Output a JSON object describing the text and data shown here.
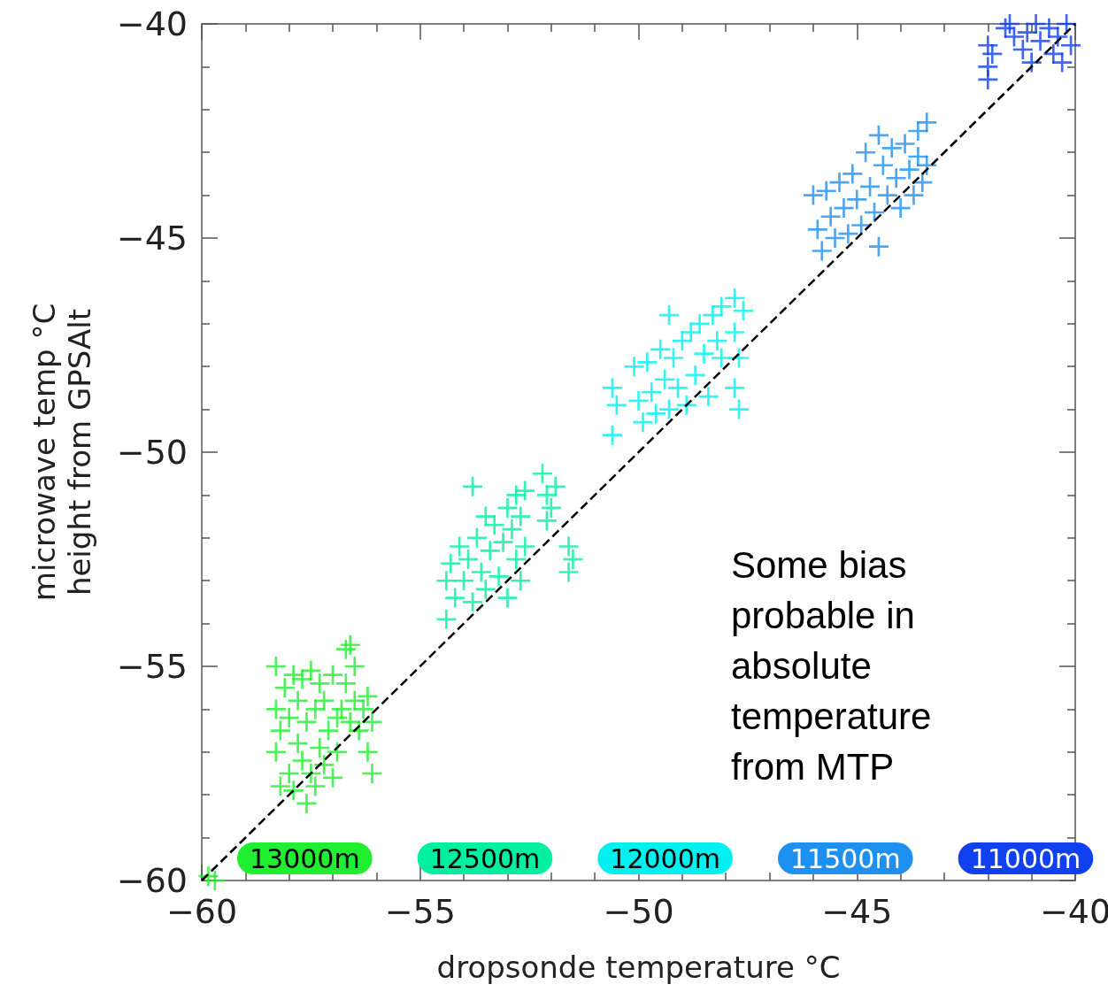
{
  "chart_data": {
    "type": "scatter",
    "xlabel": "dropsonde temperature °C",
    "ylabel": "microwave temp °C\nheight from GPSAlt",
    "xlim": [
      -60,
      -40
    ],
    "ylim": [
      -60,
      -40
    ],
    "xticks": [
      -60,
      {
        "value": -59,
        "label": null
      },
      {
        "value": -58,
        "label": null
      },
      {
        "value": -57,
        "label": null
      },
      {
        "value": -56,
        "label": null
      },
      -55,
      {
        "value": -54,
        "label": null
      },
      {
        "value": -53,
        "label": null
      },
      {
        "value": -52,
        "label": null
      },
      {
        "value": -51,
        "label": null
      },
      -50,
      {
        "value": -49,
        "label": null
      },
      {
        "value": -48,
        "label": null
      },
      {
        "value": -47,
        "label": null
      },
      {
        "value": -46,
        "label": null
      },
      -45,
      {
        "value": -44,
        "label": null
      },
      {
        "value": -43,
        "label": null
      },
      {
        "value": -42,
        "label": null
      },
      {
        "value": -41,
        "label": null
      },
      -40
    ],
    "yticks": [
      -60,
      {
        "value": -59,
        "label": null
      },
      {
        "value": -58,
        "label": null
      },
      {
        "value": -57,
        "label": null
      },
      {
        "value": -56,
        "label": null
      },
      -55,
      {
        "value": -54,
        "label": null
      },
      {
        "value": -53,
        "label": null
      },
      {
        "value": -52,
        "label": null
      },
      {
        "value": -51,
        "label": null
      },
      -50,
      {
        "value": -49,
        "label": null
      },
      {
        "value": -48,
        "label": null
      },
      {
        "value": -47,
        "label": null
      },
      {
        "value": -46,
        "label": null
      },
      -45,
      {
        "value": -44,
        "label": null
      },
      {
        "value": -43,
        "label": null
      },
      {
        "value": -42,
        "label": null
      },
      {
        "value": -41,
        "label": null
      },
      -40
    ],
    "grid": false,
    "legend": "bottom",
    "marker": "cross",
    "annotations": [
      "Some bias\nprobable in\nabsolute\ntemperature\nfrom MTP"
    ],
    "series": [
      {
        "name": "13000m",
        "color": "#20ee30",
        "x": [
          -58.3,
          -58.3,
          -58.3,
          -58.2,
          -58.2,
          -58.1,
          -58.0,
          -58.0,
          -57.9,
          -57.9,
          -57.8,
          -57.8,
          -57.7,
          -57.7,
          -57.6,
          -57.6,
          -57.5,
          -57.5,
          -57.4,
          -57.4,
          -57.3,
          -57.3,
          -57.2,
          -57.2,
          -57.1,
          -57.0,
          -57.0,
          -56.9,
          -56.9,
          -56.8,
          -56.7,
          -56.7,
          -56.6,
          -56.6,
          -56.5,
          -56.5,
          -56.4,
          -56.3,
          -56.2,
          -56.2,
          -56.1,
          -56.1,
          -59.85,
          -59.7
        ],
        "values": [
          -55.0,
          -56.0,
          -57.0,
          -57.8,
          -56.5,
          -55.5,
          -57.5,
          -56.2,
          -55.2,
          -57.9,
          -56.8,
          -55.8,
          -55.3,
          -57.2,
          -56.3,
          -58.2,
          -55.1,
          -57.5,
          -56.0,
          -57.8,
          -55.4,
          -56.9,
          -57.3,
          -55.8,
          -56.5,
          -57.6,
          -55.2,
          -56.2,
          -57.0,
          -56.0,
          -54.6,
          -55.4,
          -54.5,
          -56.3,
          -55.0,
          -55.8,
          -56.5,
          -56.0,
          -57.0,
          -55.7,
          -57.5,
          -56.3,
          -59.9,
          -60.0
        ]
      },
      {
        "name": "12500m",
        "color": "#00f0a0",
        "x": [
          -54.4,
          -54.4,
          -54.3,
          -54.2,
          -54.1,
          -54.0,
          -53.9,
          -53.8,
          -53.8,
          -53.7,
          -53.6,
          -53.5,
          -53.5,
          -53.4,
          -53.3,
          -53.2,
          -53.1,
          -53.0,
          -53.0,
          -52.9,
          -52.8,
          -52.8,
          -52.7,
          -52.7,
          -52.6,
          -52.6,
          -52.2,
          -52.1,
          -52.1,
          -52.0,
          -51.9,
          -51.6,
          -51.6,
          -51.5
        ],
        "values": [
          -53.0,
          -53.9,
          -52.6,
          -53.4,
          -52.2,
          -53.0,
          -52.5,
          -53.5,
          -50.8,
          -52.0,
          -52.8,
          -51.5,
          -53.2,
          -52.3,
          -51.7,
          -52.9,
          -52.1,
          -51.3,
          -53.4,
          -51.8,
          -52.5,
          -51.0,
          -51.5,
          -53.0,
          -52.2,
          -50.9,
          -50.5,
          -51.0,
          -51.6,
          -51.3,
          -50.8,
          -52.2,
          -52.8,
          -52.5
        ]
      },
      {
        "name": "12000m",
        "color": "#00f0f0",
        "x": [
          -50.6,
          -50.6,
          -50.5,
          -50.1,
          -50.0,
          -49.9,
          -49.8,
          -49.7,
          -49.6,
          -49.5,
          -49.4,
          -49.3,
          -49.3,
          -49.2,
          -49.1,
          -49.0,
          -48.9,
          -48.8,
          -48.7,
          -48.6,
          -48.5,
          -48.4,
          -48.3,
          -48.2,
          -48.1,
          -48.1,
          -47.8,
          -47.8,
          -47.7,
          -47.8,
          -47.7,
          -47.6
        ],
        "values": [
          -48.5,
          -49.6,
          -48.9,
          -48.0,
          -48.8,
          -49.3,
          -47.9,
          -48.6,
          -49.1,
          -47.6,
          -48.3,
          -49.0,
          -46.8,
          -47.8,
          -48.5,
          -47.4,
          -48.9,
          -47.2,
          -48.2,
          -47.0,
          -47.7,
          -48.7,
          -46.8,
          -47.4,
          -46.6,
          -47.8,
          -46.4,
          -47.2,
          -47.8,
          -48.5,
          -49.0,
          -46.7
        ]
      },
      {
        "name": "11500m",
        "color": "#1e90f0",
        "x": [
          -46.0,
          -45.9,
          -45.8,
          -45.7,
          -45.6,
          -45.5,
          -45.4,
          -45.3,
          -45.2,
          -45.1,
          -45.0,
          -44.9,
          -44.8,
          -44.7,
          -44.6,
          -44.5,
          -44.5,
          -44.4,
          -44.3,
          -44.2,
          -44.1,
          -44.0,
          -43.9,
          -43.8,
          -43.7,
          -43.6,
          -43.6,
          -43.5,
          -43.4,
          -43.4
        ],
        "values": [
          -44.0,
          -44.8,
          -45.3,
          -43.9,
          -44.5,
          -45.0,
          -43.7,
          -44.3,
          -44.9,
          -43.5,
          -44.1,
          -44.7,
          -43.0,
          -43.8,
          -44.4,
          -42.6,
          -45.2,
          -43.3,
          -44.0,
          -42.9,
          -43.6,
          -44.3,
          -42.8,
          -43.4,
          -44.0,
          -42.5,
          -43.1,
          -43.7,
          -42.3,
          -43.3
        ]
      },
      {
        "name": "11000m",
        "color": "#1040f0",
        "x": [
          -42.0,
          -42.0,
          -42.0,
          -41.9,
          -41.6,
          -41.5,
          -41.4,
          -41.2,
          -41.1,
          -41.0,
          -40.9,
          -40.8,
          -40.6,
          -40.5,
          -40.4,
          -40.3,
          -40.2,
          -40.1
        ],
        "values": [
          -40.5,
          -41.0,
          -41.3,
          -40.7,
          -40.1,
          -40.0,
          -40.3,
          -40.6,
          -40.2,
          -40.9,
          -40.0,
          -40.4,
          -40.1,
          -40.7,
          -40.3,
          -40.9,
          -40.0,
          -40.5
        ]
      },
      {
        "type": "line",
        "color": "#000000",
        "line_style": "dashed",
        "marker": "none",
        "x": [
          -60,
          -40
        ],
        "values": [
          -60,
          -40
        ]
      }
    ]
  }
}
